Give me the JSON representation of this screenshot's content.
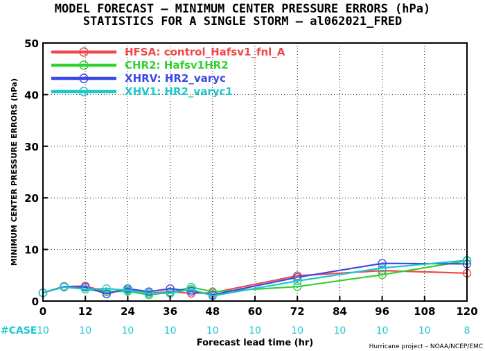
{
  "title_line1": "MODEL FORECAST – MINIMUM CENTER PRESSURE ERRORS (hPa)",
  "title_line2": "STATISTICS FOR A SINGLE STORM – al062021_FRED",
  "credit": "Hurricane project – NOAA/NCEP/EMC",
  "case_label": "#CASE",
  "chart_data": {
    "type": "line",
    "xlabel": "Forecast lead time (hr)",
    "ylabel": "MINIMUM CENTER PRESSURE ERRORS (hPa)",
    "xlim": [
      0,
      120
    ],
    "ylim": [
      0,
      50
    ],
    "xticks": [
      0,
      12,
      24,
      36,
      48,
      60,
      72,
      84,
      96,
      108,
      120
    ],
    "yticks": [
      0,
      10,
      20,
      30,
      40,
      50
    ],
    "grid": true,
    "legend_position": "top-left",
    "case_x": [
      0,
      12,
      24,
      36,
      48,
      60,
      72,
      84,
      96,
      108,
      120
    ],
    "case_counts": [
      "10",
      "10",
      "10",
      "10",
      "10",
      "10",
      "10",
      "10",
      "10",
      "10",
      "8"
    ],
    "series": [
      {
        "name": "HFSA:  control_Hafsv1_fnl_A",
        "color": "#f04848",
        "x": [
          0,
          6,
          12,
          18,
          24,
          30,
          36,
          42,
          48,
          72,
          96,
          120
        ],
        "y": [
          1.6,
          2.8,
          2.9,
          1.8,
          2.0,
          1.5,
          1.8,
          1.5,
          1.6,
          4.9,
          5.9,
          5.4
        ]
      },
      {
        "name": "CHR2:  Hafsv1HR2",
        "color": "#32d232",
        "x": [
          0,
          6,
          12,
          18,
          24,
          30,
          36,
          42,
          48,
          72,
          96,
          120
        ],
        "y": [
          1.6,
          2.8,
          2.3,
          1.8,
          1.9,
          1.2,
          1.7,
          2.7,
          1.8,
          2.8,
          5.1,
          7.8
        ]
      },
      {
        "name": "XHRV:  HR2_varyc",
        "color": "#3c48e6",
        "x": [
          0,
          6,
          12,
          18,
          24,
          30,
          36,
          42,
          48,
          72,
          96,
          120
        ],
        "y": [
          1.6,
          2.8,
          2.7,
          1.4,
          2.4,
          1.8,
          2.4,
          1.9,
          1.2,
          4.6,
          7.3,
          7.2
        ]
      },
      {
        "name": "XHV1:  HR2_varyc1",
        "color": "#1cc8cc",
        "x": [
          0,
          6,
          12,
          18,
          24,
          30,
          36,
          42,
          48,
          72,
          96,
          120
        ],
        "y": [
          1.6,
          2.7,
          2.3,
          2.4,
          2.1,
          1.5,
          1.5,
          2.3,
          1.0,
          3.9,
          6.4,
          7.9
        ]
      }
    ]
  }
}
